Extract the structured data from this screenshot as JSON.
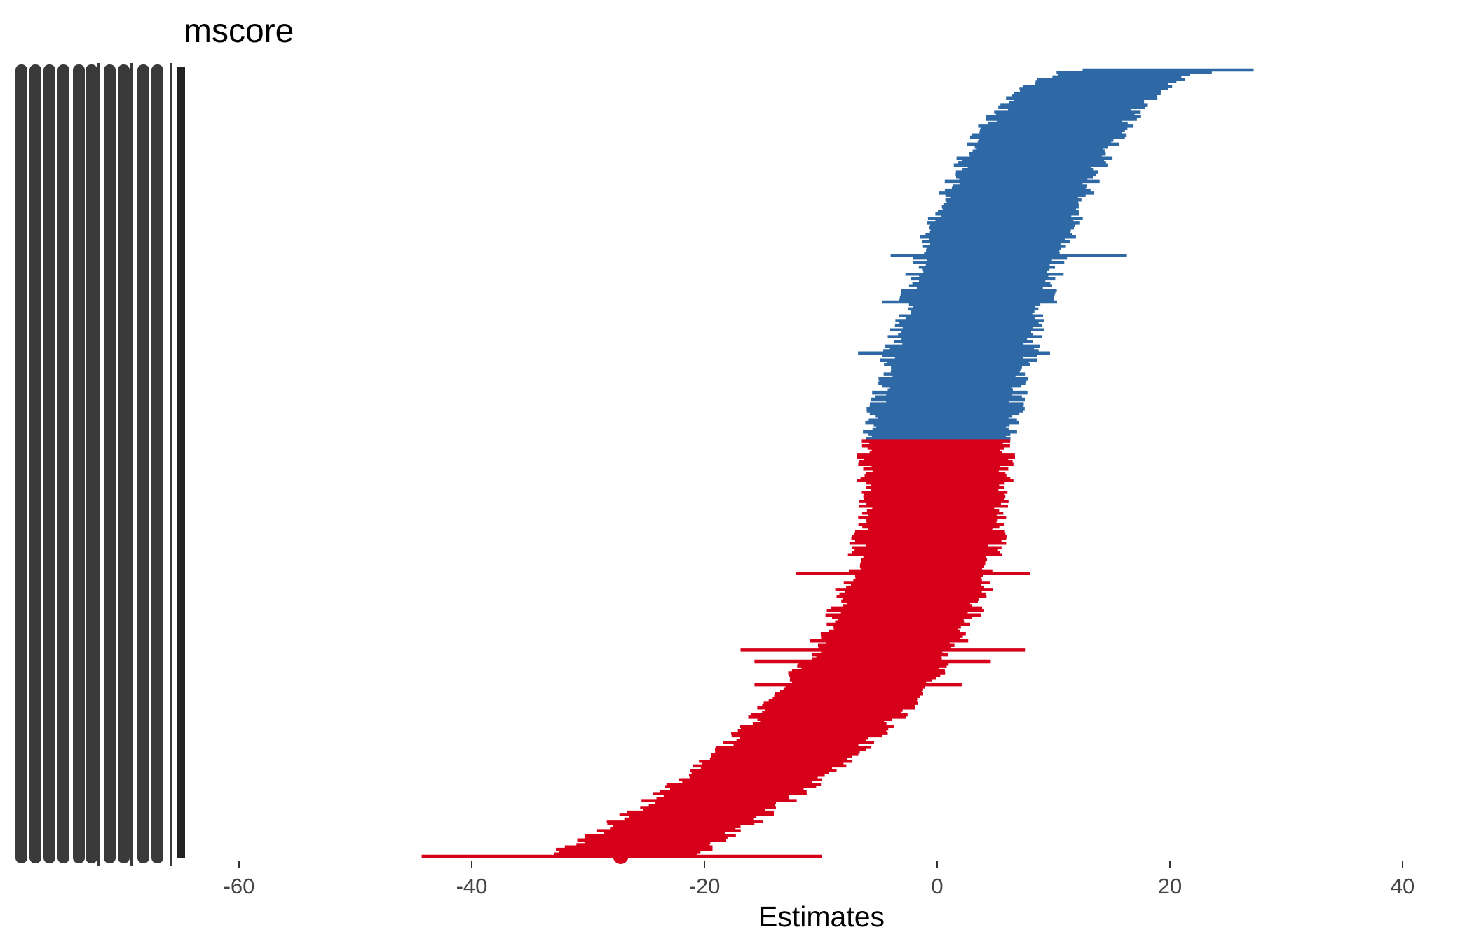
{
  "chart_data": {
    "type": "forest",
    "title": "mscore",
    "xlabel": "Estimates",
    "ylabel": "",
    "xlim": [
      -62,
      42
    ],
    "xticks": [
      -60,
      -40,
      -20,
      0,
      20,
      40
    ],
    "xtick_labels": [
      "-60",
      "-40",
      "-20",
      "0",
      "20",
      "40"
    ],
    "grid": false,
    "legend": "none",
    "y_category_labels": "school [...] (overlapping, illegible)",
    "series": [
      {
        "sign": "positive",
        "color": "#2e69a6",
        "count": 160,
        "estimate_range": [
          0.1,
          19.8
        ],
        "top_interval": {
          "estimate": 19.8,
          "low": 12.5,
          "high": 27.2
        },
        "outlier_intervals": [
          {
            "estimate": 4.6,
            "low": -4.0,
            "high": 16.3
          },
          {
            "estimate": 3.3,
            "low": -4.7,
            "high": 10.3
          },
          {
            "estimate": 2.0,
            "low": -6.8,
            "high": 9.7
          }
        ]
      },
      {
        "sign": "negative",
        "color": "#d7001b",
        "count": 180,
        "estimate_range": [
          -27.2,
          -0.1
        ],
        "bottom_interval": {
          "estimate": -27.2,
          "low": -44.3,
          "high": -9.9
        },
        "outlier_intervals": [
          {
            "estimate": -1.5,
            "low": -12.1,
            "high": 8.0
          },
          {
            "estimate": -4.6,
            "low": -16.9,
            "high": 7.6
          },
          {
            "estimate": -5.3,
            "low": -15.7,
            "high": 4.6
          },
          {
            "estimate": -6.8,
            "low": -15.7,
            "high": 2.1
          }
        ]
      }
    ]
  },
  "colors": {
    "positive": "#2e69a6",
    "negative": "#d7001b",
    "labels": "#3a3a3a"
  }
}
